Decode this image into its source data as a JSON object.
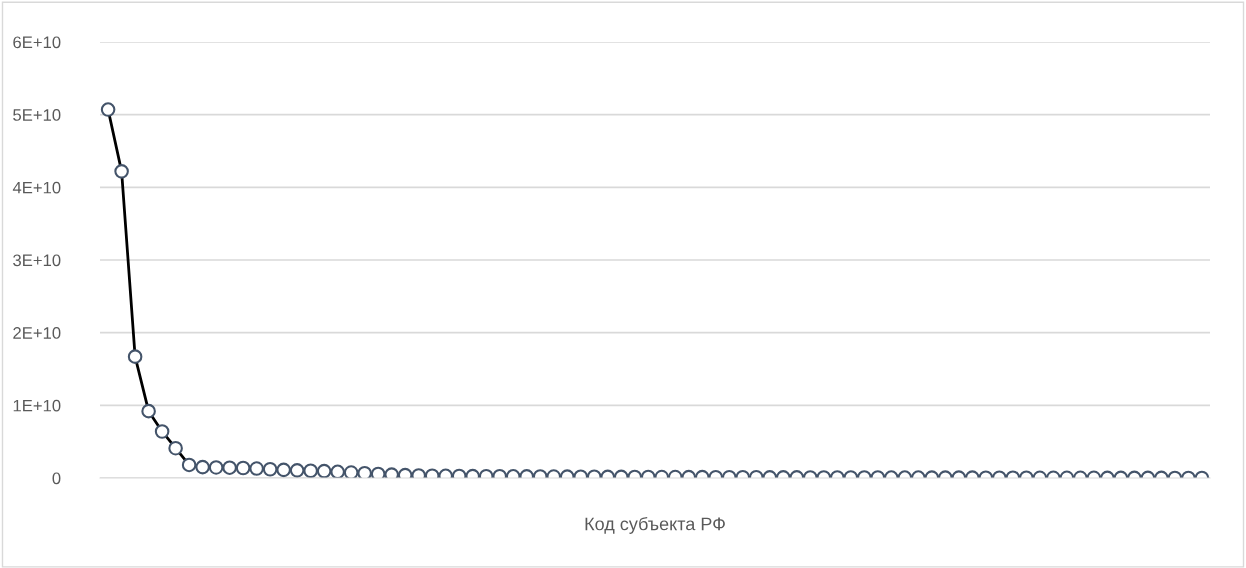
{
  "chart_data": {
    "type": "line",
    "xlabel": "Код субъекта РФ",
    "categories": [
      null,
      null,
      null,
      null,
      null,
      null,
      null,
      null,
      null,
      null,
      null,
      null,
      null,
      null,
      null,
      null,
      null,
      null,
      null,
      null,
      null,
      null,
      null,
      null,
      null,
      null,
      null,
      null,
      null,
      null,
      null,
      null,
      null,
      null,
      null,
      null,
      null,
      null,
      null,
      null,
      null,
      null,
      null,
      null,
      null,
      null,
      null,
      null,
      null,
      null,
      null,
      null,
      null,
      null,
      null,
      null,
      null,
      null,
      null,
      null,
      null,
      null,
      null,
      null,
      null,
      null,
      null,
      null,
      null,
      null,
      null,
      null,
      null,
      null,
      null,
      null,
      null,
      null,
      null,
      null,
      null,
      null
    ],
    "series": [
      {
        "color": "#000000",
        "values": [
          50700000000.0,
          42200000000.0,
          16700000000.0,
          9200000000.0,
          6400000000.0,
          4100000000.0,
          1800000000.0,
          1500000000.0,
          1450000000.0,
          1420000000.0,
          1380000000.0,
          1300000000.0,
          1200000000.0,
          1120000000.0,
          1050000000.0,
          1000000000.0,
          950000000.0,
          850000000.0,
          750000000.0,
          650000000.0,
          550000000.0,
          470000000.0,
          400000000.0,
          350000000.0,
          320000000.0,
          300000000.0,
          280000000.0,
          260000000.0,
          250000000.0,
          240000000.0,
          230000000.0,
          220000000.0,
          210000000.0,
          200000000.0,
          190000000.0,
          180000000.0,
          170000000.0,
          160000000.0,
          150000000.0,
          140000000.0,
          140000000.0,
          130000000.0,
          130000000.0,
          120000000.0,
          120000000.0,
          110000000.0,
          110000000.0,
          100000000.0,
          100000000.0,
          90000000.0,
          90000000.0,
          90000000.0,
          80000000.0,
          80000000.0,
          80000000.0,
          70000000.0,
          70000000.0,
          70000000.0,
          60000000.0,
          60000000.0,
          60000000.0,
          50000000.0,
          50000000.0,
          50000000.0,
          50000000.0,
          40000000.0,
          40000000.0,
          40000000.0,
          40000000.0,
          30000000.0,
          30000000.0,
          30000000.0,
          30000000.0,
          30000000.0,
          20000000.0,
          20000000.0,
          20000000.0,
          20000000.0,
          20000000.0,
          10000000.0,
          10000000.0,
          10000000.0
        ]
      }
    ],
    "ylim": [
      0,
      60000000000.0
    ],
    "yticks": [
      {
        "value": 0,
        "label": "0"
      },
      {
        "value": 10000000000.0,
        "label": "1E+10"
      },
      {
        "value": 20000000000.0,
        "label": "2E+10"
      },
      {
        "value": 30000000000.0,
        "label": "3E+10"
      },
      {
        "value": 40000000000.0,
        "label": "4E+10"
      },
      {
        "value": 50000000000.0,
        "label": "5E+10"
      },
      {
        "value": 60000000000.0,
        "label": "6E+10"
      }
    ],
    "grid": "y",
    "marker": "circle",
    "line_style": "solid",
    "tick_labels": "y"
  }
}
